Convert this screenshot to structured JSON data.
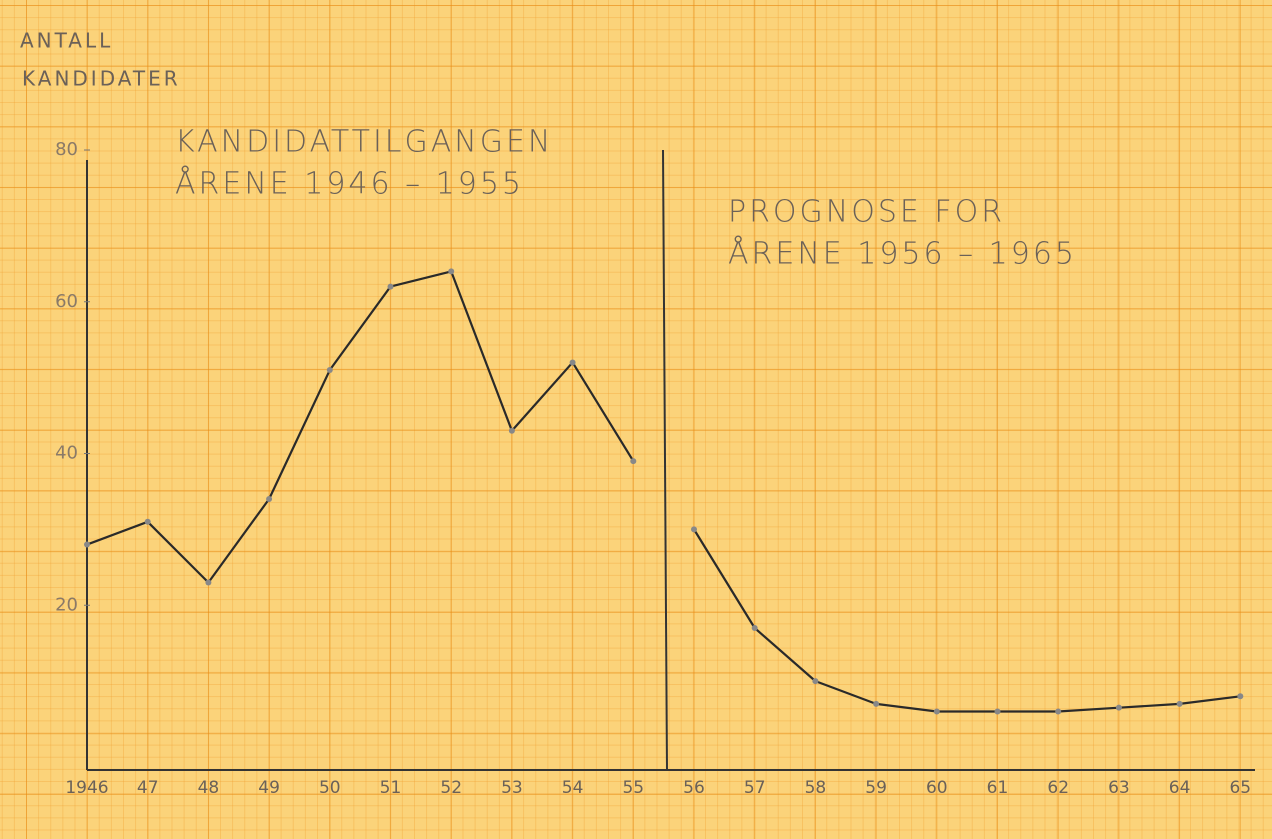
{
  "chart_data": {
    "type": "line",
    "y_label": [
      "ANTALL",
      "KANDIDATER"
    ],
    "annotations": [
      {
        "lines": [
          "KANDIDATTILGANGEN",
          "ÅRENE 1946 – 1955"
        ]
      },
      {
        "lines": [
          "PROGNOSE FOR",
          "ÅRENE 1956 – 1965"
        ]
      }
    ],
    "categories": [
      "1946",
      "47",
      "48",
      "49",
      "50",
      "51",
      "52",
      "53",
      "54",
      "55",
      "56",
      "57",
      "58",
      "59",
      "60",
      "61",
      "62",
      "63",
      "64",
      "65"
    ],
    "series": [
      {
        "color": "#2a2a2a",
        "values": [
          28,
          31,
          23,
          34,
          51,
          62,
          64,
          43,
          52,
          39,
          null,
          null,
          null,
          null,
          null,
          null,
          null,
          null,
          null,
          null
        ]
      },
      {
        "color": "#2a2a2a",
        "values": [
          null,
          null,
          null,
          null,
          null,
          null,
          null,
          null,
          null,
          null,
          30,
          17,
          10,
          7,
          6,
          6,
          6,
          6.5,
          7,
          8
        ]
      }
    ],
    "ylim": [
      0,
      80
    ],
    "yticks": [
      20,
      40,
      60,
      80
    ]
  }
}
